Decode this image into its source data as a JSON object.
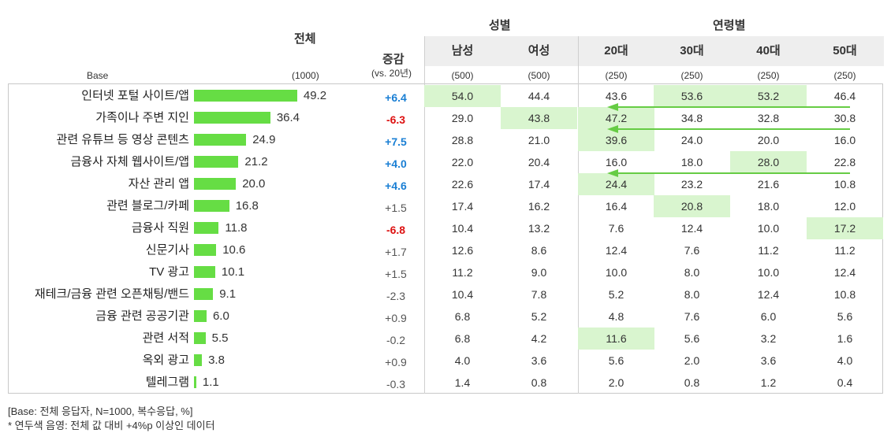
{
  "header": {
    "total_title": "전체",
    "change_title": "증감",
    "change_sub": "(vs. 20년)",
    "base_label": "Base",
    "total_base": "(1000)",
    "gender_group": "성별",
    "age_group": "연령별"
  },
  "columns": [
    {
      "label": "남성",
      "base": "(500)"
    },
    {
      "label": "여성",
      "base": "(500)"
    },
    {
      "label": "20대",
      "base": "(250)"
    },
    {
      "label": "30대",
      "base": "(250)"
    },
    {
      "label": "40대",
      "base": "(250)"
    },
    {
      "label": "50대",
      "base": "(250)"
    }
  ],
  "colors": {
    "bar": "#66dd44",
    "highlight": "#d9f5cf",
    "arrow": "#66cc44",
    "up": "#1a7fd4",
    "down": "#dd1111",
    "neutral": "#555555"
  },
  "chart_data": {
    "type": "bar",
    "title": "전체",
    "xlabel": "",
    "ylabel": "",
    "xlim": [
      0,
      50
    ],
    "categories": [
      "인터넷 포털 사이트/앱",
      "가족이나 주변 지인",
      "관련 유튜브 등 영상 콘텐츠",
      "금융사 자체 웹사이트/앱",
      "자산 관리 앱",
      "관련 블로그/카페",
      "금융사 직원",
      "신문기사",
      "TV 광고",
      "재테크/금융 관련 오픈채팅/밴드",
      "금융 관련 공공기관",
      "관련 서적",
      "옥외 광고",
      "텔레그램"
    ],
    "values": [
      49.2,
      36.4,
      24.9,
      21.2,
      20.0,
      16.8,
      11.8,
      10.6,
      10.1,
      9.1,
      6.0,
      5.5,
      3.8,
      1.1
    ],
    "value_labels": [
      "49.2",
      "36.4",
      "24.9",
      "21.2",
      "20.0",
      "16.8",
      "11.8",
      "10.6",
      "10.1",
      "9.1",
      "6.0",
      "5.5",
      "3.8",
      "1.1"
    ]
  },
  "rows": [
    {
      "change": "+6.4",
      "dir": "up",
      "cells": [
        "54.0",
        "44.4",
        "43.6",
        "53.6",
        "53.2",
        "46.4"
      ],
      "hl": [
        true,
        false,
        false,
        true,
        true,
        false
      ]
    },
    {
      "change": "-6.3",
      "dir": "down",
      "cells": [
        "29.0",
        "43.8",
        "47.2",
        "34.8",
        "32.8",
        "30.8"
      ],
      "hl": [
        false,
        true,
        true,
        false,
        false,
        false
      ]
    },
    {
      "change": "+7.5",
      "dir": "up",
      "cells": [
        "28.8",
        "21.0",
        "39.6",
        "24.0",
        "20.0",
        "16.0"
      ],
      "hl": [
        false,
        false,
        true,
        false,
        false,
        false
      ]
    },
    {
      "change": "+4.0",
      "dir": "up",
      "cells": [
        "22.0",
        "20.4",
        "16.0",
        "18.0",
        "28.0",
        "22.8"
      ],
      "hl": [
        false,
        false,
        false,
        false,
        true,
        false
      ]
    },
    {
      "change": "+4.6",
      "dir": "up",
      "cells": [
        "22.6",
        "17.4",
        "24.4",
        "23.2",
        "21.6",
        "10.8"
      ],
      "hl": [
        false,
        false,
        true,
        false,
        false,
        false
      ]
    },
    {
      "change": "+1.5",
      "dir": "neutral",
      "cells": [
        "17.4",
        "16.2",
        "16.4",
        "20.8",
        "18.0",
        "12.0"
      ],
      "hl": [
        false,
        false,
        false,
        true,
        false,
        false
      ]
    },
    {
      "change": "-6.8",
      "dir": "down",
      "cells": [
        "10.4",
        "13.2",
        "7.6",
        "12.4",
        "10.0",
        "17.2"
      ],
      "hl": [
        false,
        false,
        false,
        false,
        false,
        true
      ]
    },
    {
      "change": "+1.7",
      "dir": "neutral",
      "cells": [
        "12.6",
        "8.6",
        "12.4",
        "7.6",
        "11.2",
        "11.2"
      ],
      "hl": [
        false,
        false,
        false,
        false,
        false,
        false
      ]
    },
    {
      "change": "+1.5",
      "dir": "neutral",
      "cells": [
        "11.2",
        "9.0",
        "10.0",
        "8.0",
        "10.0",
        "12.4"
      ],
      "hl": [
        false,
        false,
        false,
        false,
        false,
        false
      ]
    },
    {
      "change": "-2.3",
      "dir": "neutral",
      "cells": [
        "10.4",
        "7.8",
        "5.2",
        "8.0",
        "12.4",
        "10.8"
      ],
      "hl": [
        false,
        false,
        false,
        false,
        false,
        false
      ]
    },
    {
      "change": "+0.9",
      "dir": "neutral",
      "cells": [
        "6.8",
        "5.2",
        "4.8",
        "7.6",
        "6.0",
        "5.6"
      ],
      "hl": [
        false,
        false,
        false,
        false,
        false,
        false
      ]
    },
    {
      "change": "-0.2",
      "dir": "neutral",
      "cells": [
        "6.8",
        "4.2",
        "11.6",
        "5.6",
        "3.2",
        "1.6"
      ],
      "hl": [
        false,
        false,
        true,
        false,
        false,
        false
      ]
    },
    {
      "change": "+0.9",
      "dir": "neutral",
      "cells": [
        "4.0",
        "3.6",
        "5.6",
        "2.0",
        "3.6",
        "4.0"
      ],
      "hl": [
        false,
        false,
        false,
        false,
        false,
        false
      ]
    },
    {
      "change": "-0.3",
      "dir": "neutral",
      "cells": [
        "1.4",
        "0.8",
        "2.0",
        "0.8",
        "1.2",
        "0.4"
      ],
      "hl": [
        false,
        false,
        false,
        false,
        false,
        false
      ]
    }
  ],
  "arrow_rows": [
    0,
    1,
    3
  ],
  "footnotes": [
    "[Base: 전체 응답자, N=1000, 복수응답, %]",
    "* 연두색 음영: 전체 값 대비 +4%p 이상인 데이터"
  ]
}
